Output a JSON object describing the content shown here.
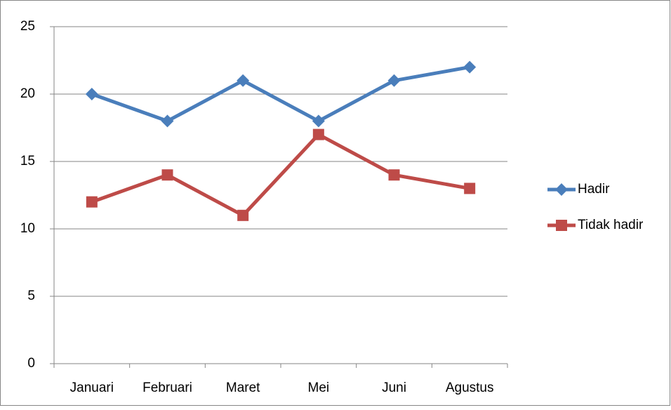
{
  "chart_data": {
    "type": "line",
    "categories": [
      "Januari",
      "Februari",
      "Maret",
      "Mei",
      "Juni",
      "Agustus"
    ],
    "series": [
      {
        "name": "Hadir",
        "color": "#4a7ebb",
        "marker": "diamond",
        "values": [
          20,
          18,
          21,
          18,
          21,
          22
        ]
      },
      {
        "name": "Tidak hadir",
        "color": "#be4b48",
        "marker": "square",
        "values": [
          12,
          14,
          11,
          17,
          14,
          13
        ]
      }
    ],
    "ylim": [
      0,
      25
    ],
    "yticks": [
      0,
      5,
      10,
      15,
      20,
      25
    ],
    "grid": true,
    "legend": "right"
  }
}
